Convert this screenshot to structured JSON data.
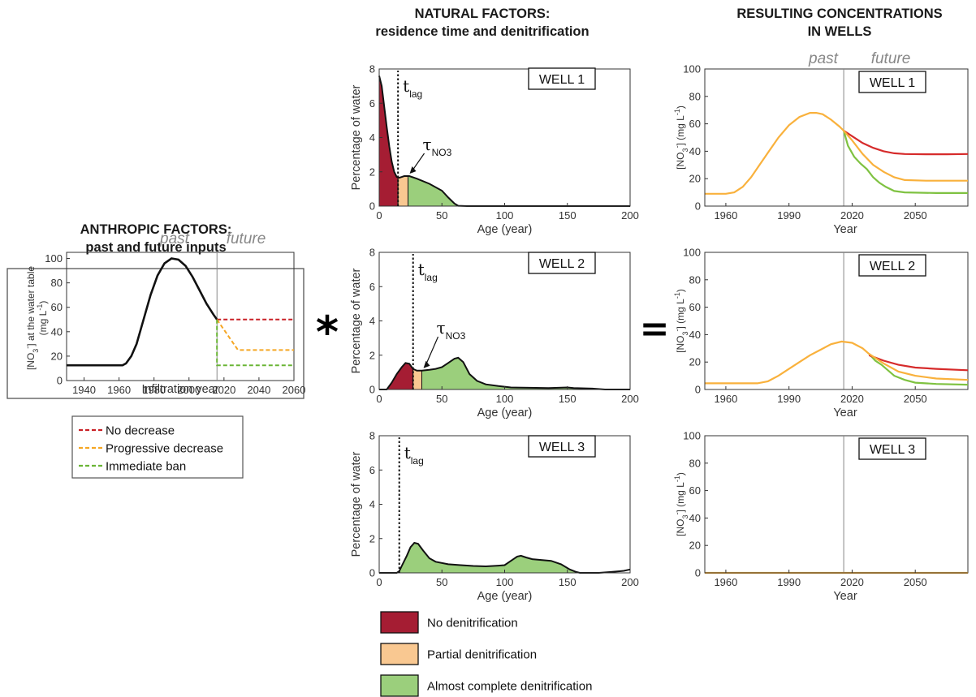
{
  "colors": {
    "red": "#a51d33",
    "orange": "#f9c891",
    "green": "#9bcf7c",
    "line_red": "#d62b2b",
    "line_orange": "#f9b13c",
    "line_green": "#7fc241",
    "dash_red": "#c92026",
    "dash_orange": "#f5a623",
    "dash_green": "#6ab535"
  },
  "headings": {
    "anthropic_1": "ANTHROPIC FACTORS:",
    "anthropic_2": "past and future inputs",
    "natural_1": "NATURAL FACTORS:",
    "natural_2": "residence time and denitrification",
    "resulting_1": "RESULTING CONCENTRATIONS",
    "resulting_2": "IN WELLS"
  },
  "operators": {
    "convolve": "*",
    "equals": "="
  },
  "chart_data": [
    {
      "id": "inputs",
      "type": "line",
      "past_label": "past",
      "future_label": "future",
      "xlabel": "Infiltration year",
      "ylabel": "[NO3-] at the water table (mg L-1)",
      "xlim": [
        1930,
        2060
      ],
      "ylim": [
        0,
        105
      ],
      "xticks": [
        "1940",
        "1960",
        "1980",
        "2000",
        "2020",
        "2040",
        "2060"
      ],
      "yticks": [
        "0",
        "20",
        "40",
        "60",
        "80",
        "100"
      ],
      "divider_x": 2016,
      "series": [
        {
          "name": "history",
          "points": [
            [
              1930,
              12.5
            ],
            [
              1962,
              12.5
            ],
            [
              1964,
              14
            ],
            [
              1967,
              20
            ],
            [
              1970,
              30
            ],
            [
              1974,
              50
            ],
            [
              1978,
              70
            ],
            [
              1982,
              86
            ],
            [
              1986,
              96
            ],
            [
              1990,
              100
            ],
            [
              1994,
              99
            ],
            [
              1998,
              94
            ],
            [
              2002,
              85
            ],
            [
              2006,
              74
            ],
            [
              2010,
              63
            ],
            [
              2014,
              54
            ],
            [
              2016,
              50
            ]
          ]
        },
        {
          "name": "No decrease",
          "points": [
            [
              2016,
              50
            ],
            [
              2060,
              50
            ]
          ]
        },
        {
          "name": "Progressive decrease",
          "points": [
            [
              2016,
              50
            ],
            [
              2028,
              25
            ],
            [
              2060,
              25
            ]
          ]
        },
        {
          "name": "Immediate ban",
          "points": [
            [
              2016,
              50
            ],
            [
              2016,
              12.5
            ],
            [
              2060,
              12.5
            ]
          ]
        }
      ],
      "legend": [
        "No decrease",
        "Progressive decrease",
        "Immediate ban"
      ]
    },
    {
      "id": "well1-distribution",
      "type": "area",
      "well_label": "WELL 1",
      "xlabel": "Age (year)",
      "ylabel": "Percentage of water",
      "xlim": [
        0,
        200
      ],
      "ylim": [
        0,
        8
      ],
      "xticks": [
        "0",
        "50",
        "100",
        "150",
        "200"
      ],
      "yticks": [
        "0",
        "2",
        "4",
        "6",
        "8"
      ],
      "t_lag": 15,
      "tau_no3": 23,
      "curve": [
        [
          0,
          7.6
        ],
        [
          2,
          7.0
        ],
        [
          4,
          5.8
        ],
        [
          6,
          4.6
        ],
        [
          8,
          3.5
        ],
        [
          10,
          2.6
        ],
        [
          12,
          2.0
        ],
        [
          14,
          1.7
        ],
        [
          16,
          1.65
        ],
        [
          18,
          1.7
        ],
        [
          20,
          1.75
        ],
        [
          24,
          1.75
        ],
        [
          30,
          1.6
        ],
        [
          40,
          1.3
        ],
        [
          50,
          0.9
        ],
        [
          55,
          0.5
        ],
        [
          60,
          0.15
        ],
        [
          63,
          0.02
        ],
        [
          70,
          0
        ],
        [
          200,
          0
        ]
      ],
      "zones": [
        {
          "name": "No denitrification",
          "from": 0,
          "to": 15
        },
        {
          "name": "Partial denitrification",
          "from": 15,
          "to": 23
        },
        {
          "name": "Almost complete denitrification",
          "from": 23,
          "to": 63
        }
      ]
    },
    {
      "id": "well2-distribution",
      "type": "area",
      "well_label": "WELL 2",
      "xlabel": "Age (year)",
      "ylabel": "Percentage of water",
      "xlim": [
        0,
        200
      ],
      "ylim": [
        0,
        8
      ],
      "xticks": [
        "0",
        "50",
        "100",
        "150",
        "200"
      ],
      "yticks": [
        "0",
        "2",
        "4",
        "6",
        "8"
      ],
      "t_lag": 27,
      "tau_no3": 34,
      "curve": [
        [
          0,
          0
        ],
        [
          6,
          0
        ],
        [
          10,
          0.4
        ],
        [
          14,
          0.9
        ],
        [
          18,
          1.3
        ],
        [
          21,
          1.55
        ],
        [
          24,
          1.5
        ],
        [
          27,
          1.2
        ],
        [
          30,
          1.1
        ],
        [
          34,
          1.1
        ],
        [
          40,
          1.15
        ],
        [
          45,
          1.2
        ],
        [
          50,
          1.3
        ],
        [
          55,
          1.55
        ],
        [
          60,
          1.8
        ],
        [
          63,
          1.85
        ],
        [
          67,
          1.6
        ],
        [
          72,
          0.9
        ],
        [
          78,
          0.5
        ],
        [
          85,
          0.3
        ],
        [
          95,
          0.2
        ],
        [
          105,
          0.12
        ],
        [
          120,
          0.1
        ],
        [
          135,
          0.08
        ],
        [
          150,
          0.12
        ],
        [
          155,
          0.08
        ],
        [
          170,
          0.05
        ],
        [
          180,
          0
        ],
        [
          200,
          0
        ]
      ],
      "zones": [
        {
          "name": "No denitrification",
          "from": 6,
          "to": 27
        },
        {
          "name": "Partial denitrification",
          "from": 27,
          "to": 34
        },
        {
          "name": "Almost complete denitrification",
          "from": 34,
          "to": 180
        }
      ]
    },
    {
      "id": "well3-distribution",
      "type": "area",
      "well_label": "WELL 3",
      "xlabel": "Age (year)",
      "ylabel": "Percentage of water",
      "xlim": [
        0,
        200
      ],
      "ylim": [
        0,
        8
      ],
      "xticks": [
        "0",
        "50",
        "100",
        "150",
        "200"
      ],
      "yticks": [
        "0",
        "2",
        "4",
        "6",
        "8"
      ],
      "t_lag": 16,
      "curve": [
        [
          0,
          0
        ],
        [
          14,
          0
        ],
        [
          16,
          0.1
        ],
        [
          18,
          0.4
        ],
        [
          22,
          1.0
        ],
        [
          25,
          1.5
        ],
        [
          28,
          1.75
        ],
        [
          31,
          1.7
        ],
        [
          35,
          1.3
        ],
        [
          40,
          0.85
        ],
        [
          45,
          0.65
        ],
        [
          55,
          0.5
        ],
        [
          65,
          0.45
        ],
        [
          75,
          0.4
        ],
        [
          85,
          0.38
        ],
        [
          95,
          0.42
        ],
        [
          100,
          0.45
        ],
        [
          105,
          0.7
        ],
        [
          110,
          0.95
        ],
        [
          113,
          1.0
        ],
        [
          117,
          0.9
        ],
        [
          122,
          0.8
        ],
        [
          130,
          0.75
        ],
        [
          137,
          0.7
        ],
        [
          145,
          0.5
        ],
        [
          152,
          0.2
        ],
        [
          157,
          0.05
        ],
        [
          160,
          0
        ],
        [
          175,
          0
        ],
        [
          185,
          0.05
        ],
        [
          195,
          0.12
        ],
        [
          200,
          0.2
        ]
      ],
      "zones": [
        {
          "name": "No denitrification",
          "from": 14,
          "to": 16
        },
        {
          "name": "Almost complete denitrification",
          "from": 16,
          "to": 160
        }
      ]
    },
    {
      "id": "well1-concentration",
      "type": "line",
      "well_label": "WELL 1",
      "past_label": "past",
      "future_label": "future",
      "xlabel": "Year",
      "ylabel": "[NO3-] (mg L-1)",
      "xlim": [
        1950,
        2075
      ],
      "ylim": [
        0,
        100
      ],
      "xticks": [
        "1960",
        "1990",
        "2020",
        "2050"
      ],
      "yticks": [
        "0",
        "20",
        "40",
        "60",
        "80",
        "100"
      ],
      "divider_x": 2016,
      "series": [
        {
          "name": "No decrease",
          "points": [
            [
              2016,
              55
            ],
            [
              2020,
              51
            ],
            [
              2025,
              46
            ],
            [
              2030,
              42.5
            ],
            [
              2035,
              40
            ],
            [
              2040,
              38.5
            ],
            [
              2045,
              38
            ],
            [
              2055,
              37.8
            ],
            [
              2065,
              37.8
            ],
            [
              2075,
              38
            ]
          ]
        },
        {
          "name": "Progressive decrease",
          "points": [
            [
              1950,
              9
            ],
            [
              1960,
              9
            ],
            [
              1964,
              10
            ],
            [
              1968,
              14
            ],
            [
              1972,
              21
            ],
            [
              1976,
              30
            ],
            [
              1980,
              39
            ],
            [
              1985,
              50
            ],
            [
              1990,
              59
            ],
            [
              1995,
              65
            ],
            [
              2000,
              68
            ],
            [
              2003,
              68
            ],
            [
              2006,
              67
            ],
            [
              2010,
              63
            ],
            [
              2014,
              58
            ],
            [
              2016,
              55
            ],
            [
              2020,
              48
            ],
            [
              2025,
              38
            ],
            [
              2030,
              30
            ],
            [
              2035,
              25
            ],
            [
              2040,
              21
            ],
            [
              2045,
              19
            ],
            [
              2055,
              18.5
            ],
            [
              2075,
              18.5
            ]
          ]
        },
        {
          "name": "Immediate ban",
          "points": [
            [
              2016,
              55
            ],
            [
              2018,
              44
            ],
            [
              2021,
              36
            ],
            [
              2024,
              31
            ],
            [
              2027,
              27
            ],
            [
              2030,
              21
            ],
            [
              2033,
              17
            ],
            [
              2036,
              14
            ],
            [
              2040,
              11
            ],
            [
              2045,
              10
            ],
            [
              2060,
              9.5
            ],
            [
              2075,
              9.5
            ]
          ]
        }
      ]
    },
    {
      "id": "well2-concentration",
      "type": "line",
      "well_label": "WELL 2",
      "xlabel": "Year",
      "ylabel": "[NO3-] (mg L-1)",
      "xlim": [
        1950,
        2075
      ],
      "ylim": [
        0,
        100
      ],
      "xticks": [
        "1960",
        "1990",
        "2020",
        "2050"
      ],
      "yticks": [
        "0",
        "20",
        "40",
        "60",
        "80",
        "100"
      ],
      "divider_x": 2016,
      "series": [
        {
          "name": "No decrease",
          "points": [
            [
              2028,
              25
            ],
            [
              2035,
              21
            ],
            [
              2042,
              18
            ],
            [
              2050,
              16
            ],
            [
              2060,
              15
            ],
            [
              2075,
              14
            ]
          ]
        },
        {
          "name": "Progressive decrease",
          "points": [
            [
              1950,
              4.5
            ],
            [
              1975,
              4.5
            ],
            [
              1980,
              6
            ],
            [
              1985,
              10
            ],
            [
              1990,
              15
            ],
            [
              1995,
              20
            ],
            [
              2000,
              25
            ],
            [
              2005,
              29
            ],
            [
              2010,
              33
            ],
            [
              2015,
              35
            ],
            [
              2020,
              34
            ],
            [
              2025,
              30
            ],
            [
              2028,
              26
            ],
            [
              2035,
              19
            ],
            [
              2042,
              13
            ],
            [
              2050,
              10
            ],
            [
              2060,
              8
            ],
            [
              2075,
              7
            ]
          ]
        },
        {
          "name": "Immediate ban",
          "points": [
            [
              2028,
              26
            ],
            [
              2031,
              21
            ],
            [
              2034,
              18
            ],
            [
              2037,
              14
            ],
            [
              2040,
              10
            ],
            [
              2045,
              7
            ],
            [
              2050,
              5
            ],
            [
              2060,
              4
            ],
            [
              2075,
              3.5
            ]
          ]
        }
      ]
    },
    {
      "id": "well3-concentration",
      "type": "line",
      "well_label": "WELL 3",
      "xlabel": "Year",
      "ylabel": "[NO3-] (mg L-1)",
      "xlim": [
        1950,
        2075
      ],
      "ylim": [
        0,
        100
      ],
      "xticks": [
        "1960",
        "1990",
        "2020",
        "2050"
      ],
      "yticks": [
        "0",
        "20",
        "40",
        "60",
        "80",
        "100"
      ],
      "divider_x": 2016,
      "series": [
        {
          "name": "Progressive decrease",
          "points": [
            [
              1950,
              0
            ],
            [
              2075,
              0
            ]
          ]
        }
      ]
    }
  ],
  "legends": {
    "inputs": [
      "No decrease",
      "Progressive decrease",
      "Immediate ban"
    ],
    "denitrification": [
      "No denitrification",
      "Partial denitrification",
      "Almost complete denitrification"
    ]
  }
}
